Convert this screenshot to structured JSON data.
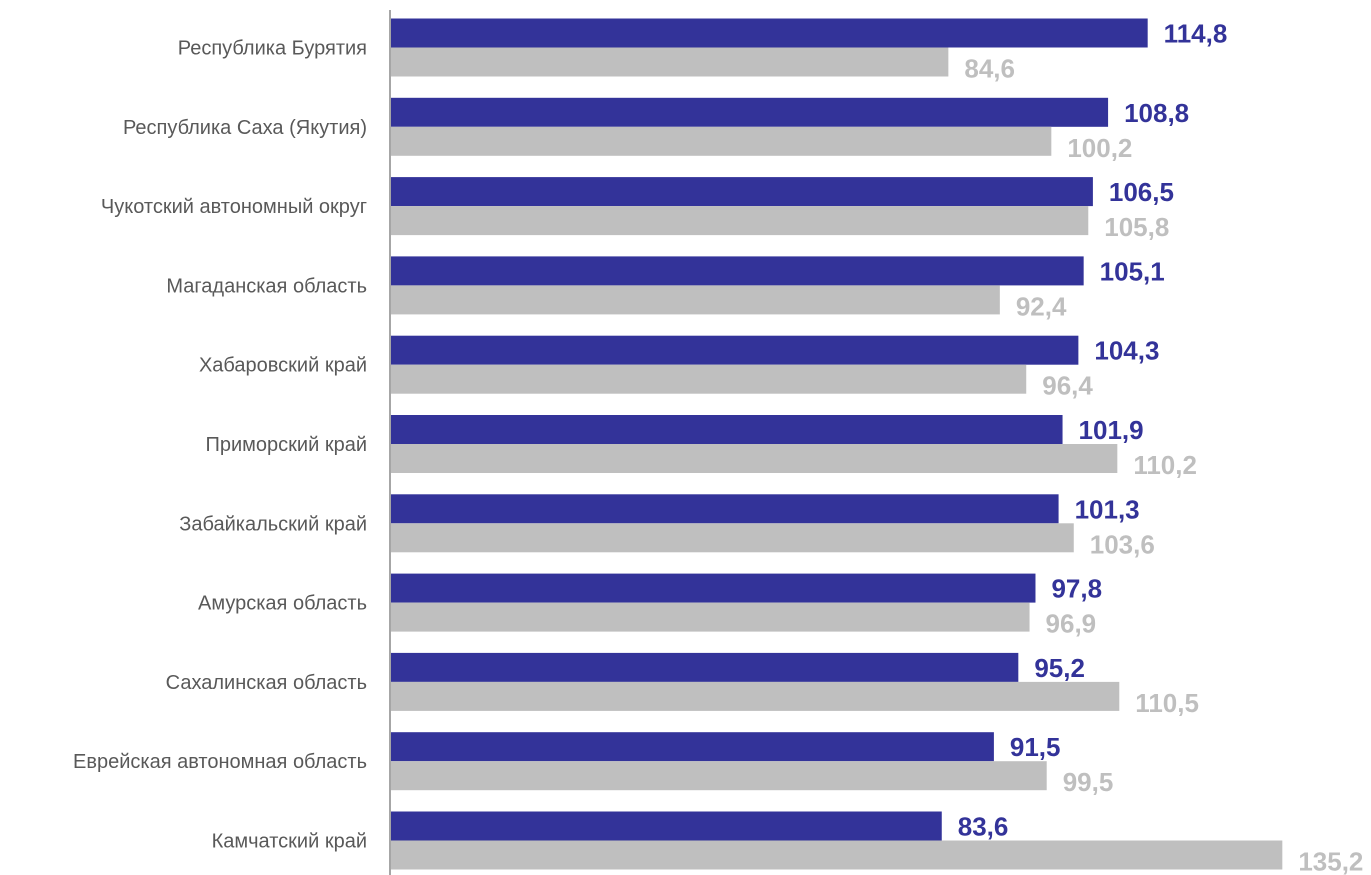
{
  "chart_data": {
    "type": "bar",
    "orientation": "horizontal",
    "categories": [
      "Республика Бурятия",
      "Республика Саха (Якутия)",
      "Чукотский автономный округ",
      "Магаданская область",
      "Хабаровский край",
      "Приморский край",
      "Забайкальский край",
      "Амурская область",
      "Сахалинская область",
      "Еврейская автономная область",
      "Камчатский край"
    ],
    "series": [
      {
        "values": [
          114.8,
          108.8,
          106.5,
          105.1,
          104.3,
          101.9,
          101.3,
          97.8,
          95.2,
          91.5,
          83.6
        ],
        "labels": [
          "114,8",
          "108,8",
          "106,5",
          "105,1",
          "104,3",
          "101,9",
          "101,3",
          "97,8",
          "95,2",
          "91,5",
          "83,6"
        ],
        "color": "#333399"
      },
      {
        "values": [
          84.6,
          100.2,
          105.8,
          92.4,
          96.4,
          110.2,
          103.6,
          96.9,
          110.5,
          99.5,
          135.2
        ],
        "labels": [
          "84,6",
          "100,2",
          "105,8",
          "92,4",
          "96,4",
          "110,2",
          "103,6",
          "96,9",
          "110,5",
          "99,5",
          "135,2"
        ],
        "color": "#bfbfbf"
      }
    ],
    "xlim": [
      0,
      140
    ],
    "title": "",
    "xlabel": "",
    "ylabel": "",
    "grid": false,
    "legend": false
  }
}
